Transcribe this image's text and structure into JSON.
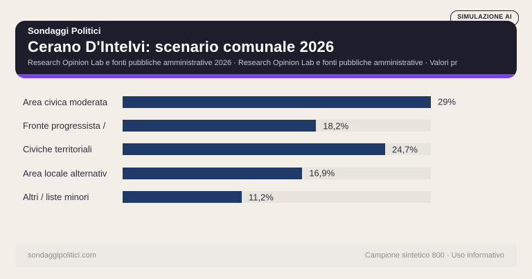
{
  "badge": {
    "label": "SIMULAZIONE AI"
  },
  "header": {
    "brand": "Sondaggi Politici",
    "title": "Cerano D'Intelvi: scenario comunale 2026",
    "subtitle": "Research Opinion Lab e fonti pubbliche amministrative 2026 · Research Opinion Lab e fonti pubbliche amministrative · Valori pr",
    "background_color": "#1e1d2b",
    "accent_color": "#7d3ff2"
  },
  "chart_data": {
    "type": "bar",
    "orientation": "horizontal",
    "title": "Cerano D'Intelvi: scenario comunale 2026",
    "categories": [
      "Area civica moderata",
      "Fronte progressista /",
      "Civiche territoriali",
      "Area locale alternativ",
      "Altri / liste minori"
    ],
    "values": [
      29,
      18.2,
      24.7,
      16.9,
      11.2
    ],
    "value_labels": [
      "29%",
      "18,2%",
      "24,7%",
      "16,9%",
      "11,2%"
    ],
    "x_max": 29,
    "bar_color": "#1f3a68",
    "track_color": "#e8e4de",
    "grid": false,
    "legend": false
  },
  "footer": {
    "left": "sondaggipolitici.com",
    "right": "Campione sintetico 800 · Uso informativo"
  }
}
